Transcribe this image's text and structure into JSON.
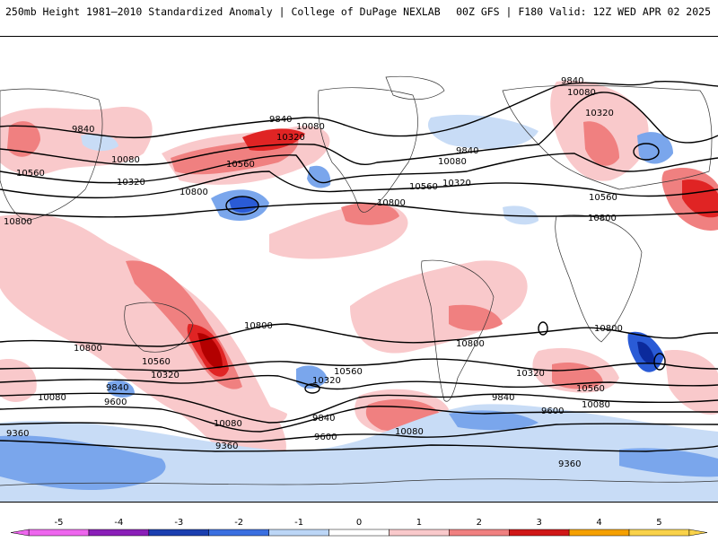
{
  "header": {
    "title": "250mb Height 1981–2010 Standardized Anomaly | College of DuPage NEXLAB",
    "run_info": "00Z GFS | F180 Valid: 12Z WED APR 02 2025"
  },
  "map": {
    "contour_labels": [
      "9360",
      "9600",
      "9840",
      "10080",
      "10320",
      "10560",
      "10800"
    ],
    "anomaly_colors": {
      "pos1": "#f9c9cb",
      "pos2": "#f08080",
      "pos3": "#e02424",
      "pos4": "#b30000",
      "neg1": "#c8dcf6",
      "neg2": "#7aa6ec",
      "neg3": "#2a5bd6",
      "neg4": "#0b2a9c",
      "land": "#ffffff",
      "contour": "#000000",
      "border": "#333333"
    }
  },
  "legend": {
    "ticks": [
      "-5",
      "-4",
      "-3",
      "-2",
      "-1",
      "0",
      "1",
      "2",
      "3",
      "4",
      "5"
    ],
    "colors": [
      "#ee66ee",
      "#8a1fb8",
      "#1b3fb0",
      "#3a6fe0",
      "#bcd6f6",
      "#ffffff",
      "#f9c9cb",
      "#f08080",
      "#d01818",
      "#f5a000",
      "#f9d24a"
    ]
  }
}
